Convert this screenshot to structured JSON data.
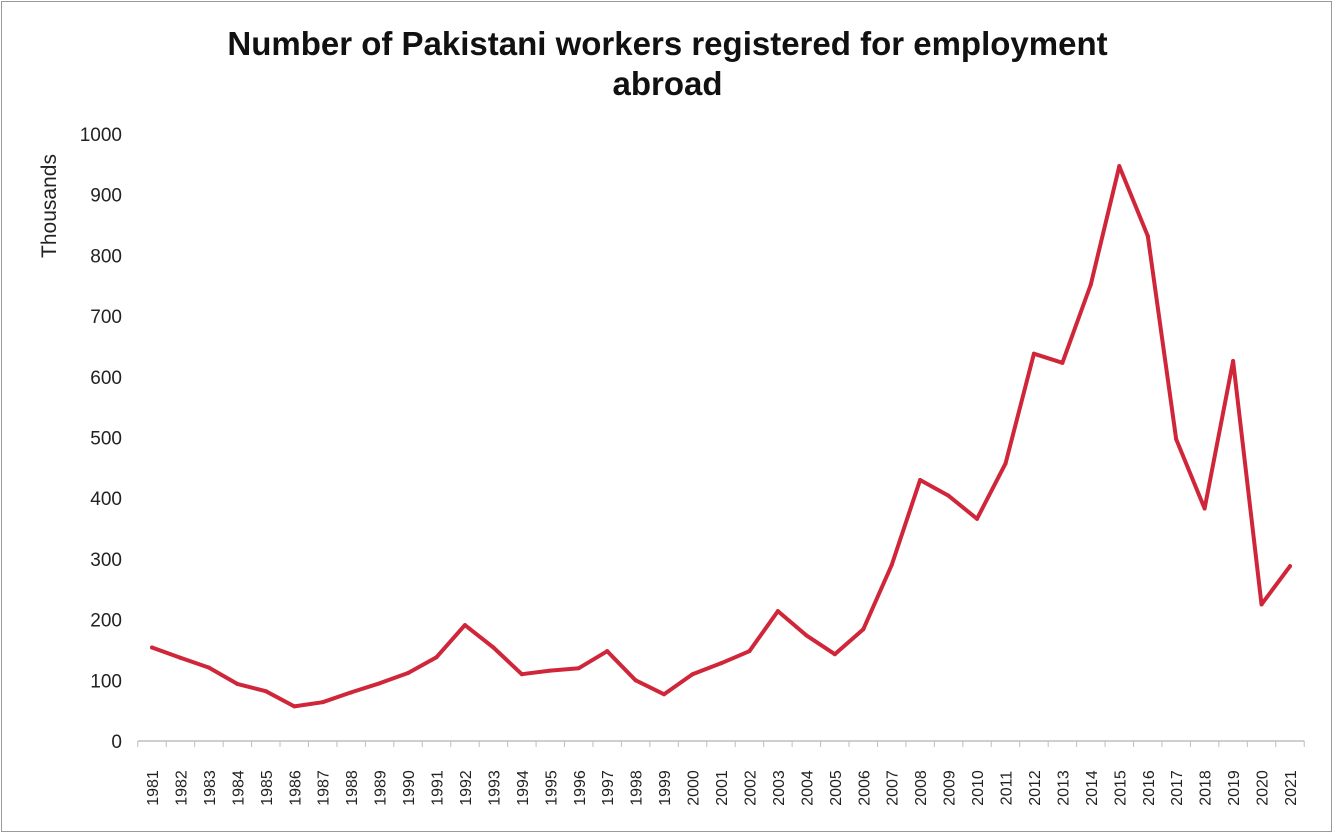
{
  "chart_data": {
    "type": "line",
    "title_lines": [
      "Number of Pakistani workers registered for employment",
      "abroad"
    ],
    "ylabel": "Thousands",
    "xlabel": "",
    "ylim": [
      0,
      1000
    ],
    "yticks": [
      0,
      100,
      200,
      300,
      400,
      500,
      600,
      700,
      800,
      900,
      1000
    ],
    "grid": false,
    "legend": "none",
    "line_color": "#d0263a",
    "x": [
      "1981",
      "1982",
      "1983",
      "1984",
      "1985",
      "1986",
      "1987",
      "1988",
      "1989",
      "1990",
      "1991",
      "1992",
      "1993",
      "1994",
      "1995",
      "1996",
      "1997",
      "1998",
      "1999",
      "2000",
      "2001",
      "2002",
      "2003",
      "2004",
      "2005",
      "2006",
      "2007",
      "2008",
      "2009",
      "2010",
      "2011",
      "2012",
      "2013",
      "2014",
      "2015",
      "2016",
      "2017",
      "2018",
      "2019",
      "2020",
      "2021"
    ],
    "series": [
      {
        "values": [
          154,
          137,
          121,
          94,
          82,
          57,
          64,
          80,
          95,
          112,
          138,
          191,
          154,
          110,
          116,
          120,
          148,
          100,
          77,
          110,
          128,
          148,
          214,
          174,
          143,
          184,
          290,
          430,
          404,
          366,
          457,
          638,
          623,
          752,
          947,
          832,
          497,
          383,
          626,
          225,
          288
        ]
      }
    ]
  }
}
